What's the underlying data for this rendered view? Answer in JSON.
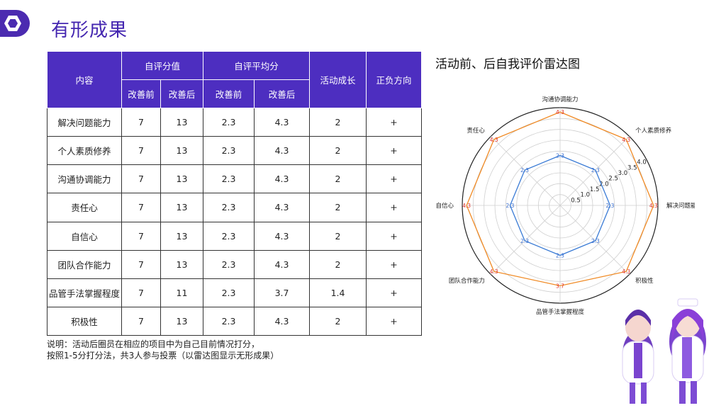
{
  "page": {
    "title": "有形成果"
  },
  "table": {
    "headers": {
      "content": "内容",
      "self_score": "自评分值",
      "self_avg": "自评平均分",
      "growth": "活动成长",
      "direction": "正负方向",
      "before": "改善前",
      "after": "改善后"
    },
    "rows": [
      {
        "name": "解决问题能力",
        "score_before": "7",
        "score_after": "13",
        "avg_before": "2.3",
        "avg_after": "4.3",
        "growth": "2",
        "sign": "+"
      },
      {
        "name": "个人素质修养",
        "score_before": "7",
        "score_after": "13",
        "avg_before": "2.3",
        "avg_after": "4.3",
        "growth": "2",
        "sign": "+"
      },
      {
        "name": "沟通协调能力",
        "score_before": "7",
        "score_after": "13",
        "avg_before": "2.3",
        "avg_after": "4.3",
        "growth": "2",
        "sign": "+"
      },
      {
        "name": "责任心",
        "score_before": "7",
        "score_after": "13",
        "avg_before": "2.3",
        "avg_after": "4.3",
        "growth": "2",
        "sign": "+"
      },
      {
        "name": "自信心",
        "score_before": "7",
        "score_after": "13",
        "avg_before": "2.3",
        "avg_after": "4.3",
        "growth": "2",
        "sign": "+"
      },
      {
        "name": "团队合作能力",
        "score_before": "7",
        "score_after": "13",
        "avg_before": "2.3",
        "avg_after": "4.3",
        "growth": "2",
        "sign": "+"
      },
      {
        "name": "品管手法掌握程度",
        "score_before": "7",
        "score_after": "11",
        "avg_before": "2.3",
        "avg_after": "3.7",
        "growth": "1.4",
        "sign": "+"
      },
      {
        "name": "积极性",
        "score_before": "7",
        "score_after": "13",
        "avg_before": "2.3",
        "avg_after": "4.3",
        "growth": "2",
        "sign": "+"
      }
    ]
  },
  "note": {
    "line1": "说明：活动后圈员在相应的项目中为自己目前情况打分，",
    "line2": "按照1-5分打分法，共3人参与投票（以雷达图显示无形成果）"
  },
  "radar": {
    "title": "活动前、后自我评价雷达图"
  },
  "chart_data": {
    "type": "radar",
    "title": "活动前、后自我评价雷达图",
    "categories": [
      "沟通协调能力",
      "个人素质修养",
      "解决问题能力",
      "积极性",
      "品管手法掌握程度",
      "团队合作能力",
      "自信心",
      "责任心"
    ],
    "series": [
      {
        "values": [
          2.3,
          2.3,
          2.3,
          2.3,
          2.3,
          2.3,
          2.3,
          2.3
        ],
        "color": "#3a7bd5"
      },
      {
        "values": [
          4.3,
          4.3,
          4.3,
          4.3,
          3.7,
          4.3,
          4.3,
          4.3
        ],
        "color": "#f08a24"
      }
    ],
    "rlim": [
      0,
      4.5
    ],
    "rticks": [
      "0.5",
      "1.0",
      "1.5",
      "2.0",
      "2.5",
      "3.0",
      "3.5",
      "4.0"
    ],
    "grid": true
  },
  "illustration": {
    "icon": "nurse-characters"
  }
}
